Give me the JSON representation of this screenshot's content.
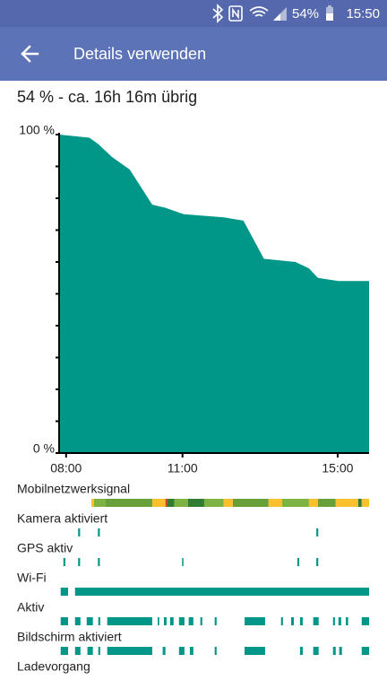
{
  "status_bar": {
    "battery": "54%",
    "time": "15:50"
  },
  "toolbar": {
    "title": "Details verwenden"
  },
  "summary": "54 % - ca. 16h 16m übrig",
  "chart_data": {
    "type": "area",
    "x": [
      7.82,
      8.6,
      8.83,
      9.18,
      9.64,
      10.22,
      10.56,
      11.03,
      12.06,
      12.57,
      13.1,
      13.91,
      14.26,
      14.49,
      15.02,
      15.81
    ],
    "values": [
      100,
      99,
      97,
      93,
      89,
      78,
      77,
      75,
      74,
      73,
      61,
      60,
      58,
      55,
      54,
      54
    ],
    "color": "#009688",
    "xlim": [
      7.82,
      15.81
    ],
    "ylim": [
      0,
      100
    ],
    "xticks": [
      {
        "value": 8,
        "label": "08:00"
      },
      {
        "value": 11,
        "label": "11:00"
      },
      {
        "value": 15,
        "label": "15:00"
      }
    ],
    "yticks": [
      {
        "value": 0,
        "label": "0 %"
      },
      {
        "value": 100,
        "label": "100 %"
      }
    ],
    "yminor_ticks": [
      10,
      20,
      30,
      40,
      50,
      60,
      70,
      80,
      90
    ]
  },
  "timeline": {
    "color": "#009688",
    "rows": [
      {
        "label": "Mobilnetzwerksignal",
        "segments": [
          {
            "start": 8.65,
            "end": 8.72,
            "color": "#fbc02d"
          },
          {
            "start": 8.72,
            "end": 9.02,
            "color": "#7cb342"
          },
          {
            "start": 9.02,
            "end": 10.22,
            "color": "#689f38"
          },
          {
            "start": 10.22,
            "end": 10.56,
            "color": "#fbc02d"
          },
          {
            "start": 10.56,
            "end": 10.6,
            "color": "#e53935"
          },
          {
            "start": 10.6,
            "end": 10.79,
            "color": "#2e7d32"
          },
          {
            "start": 10.79,
            "end": 11.14,
            "color": "#7cb342"
          },
          {
            "start": 11.14,
            "end": 11.56,
            "color": "#2e7d32"
          },
          {
            "start": 11.56,
            "end": 12.06,
            "color": "#7cb342"
          },
          {
            "start": 12.06,
            "end": 12.3,
            "color": "#fbc02d"
          },
          {
            "start": 12.3,
            "end": 13.22,
            "color": "#689f38"
          },
          {
            "start": 13.22,
            "end": 13.57,
            "color": "#fbc02d"
          },
          {
            "start": 13.57,
            "end": 14.26,
            "color": "#7cb342"
          },
          {
            "start": 14.26,
            "end": 14.49,
            "color": "#fbc02d"
          },
          {
            "start": 14.49,
            "end": 14.95,
            "color": "#689f38"
          },
          {
            "start": 14.95,
            "end": 15.53,
            "color": "#fbc02d"
          },
          {
            "start": 15.53,
            "end": 15.62,
            "color": "#2e7d32"
          },
          {
            "start": 15.62,
            "end": 15.81,
            "color": "#fbc02d"
          }
        ]
      },
      {
        "label": "Kamera aktiviert",
        "segments": [
          [
            8.31,
            8.36
          ],
          [
            8.82,
            8.87
          ],
          [
            14.45,
            14.5
          ]
        ]
      },
      {
        "label": "GPS aktiv",
        "segments": [
          [
            7.93,
            7.98
          ],
          [
            8.31,
            8.36
          ],
          [
            8.82,
            8.87
          ],
          [
            10.99,
            11.02
          ],
          [
            13.96,
            14.01
          ],
          [
            14.45,
            14.5
          ]
        ]
      },
      {
        "label": "Wi-Fi",
        "segments": [
          [
            7.86,
            8.05
          ],
          [
            8.23,
            15.81
          ]
        ]
      },
      {
        "label": "Aktiv",
        "segments": [
          [
            7.86,
            8.05
          ],
          [
            8.23,
            8.37
          ],
          [
            8.53,
            8.69
          ],
          [
            8.83,
            8.88
          ],
          [
            9.06,
            10.22
          ],
          [
            10.36,
            10.4
          ],
          [
            10.52,
            10.59
          ],
          [
            10.68,
            10.77
          ],
          [
            10.91,
            11.05
          ],
          [
            11.16,
            11.28
          ],
          [
            11.46,
            11.51
          ],
          [
            11.83,
            11.88
          ],
          [
            12.6,
            13.13
          ],
          [
            13.54,
            13.59
          ],
          [
            13.8,
            13.87
          ],
          [
            14.03,
            14.1
          ],
          [
            14.37,
            14.51
          ],
          [
            14.88,
            14.93
          ],
          [
            15.02,
            15.09
          ],
          [
            15.21,
            15.27
          ],
          [
            15.62,
            15.81
          ]
        ]
      },
      {
        "label": "Bildschirm aktiviert",
        "segments": [
          [
            7.86,
            8.05
          ],
          [
            8.23,
            8.37
          ],
          [
            8.55,
            8.69
          ],
          [
            8.83,
            8.88
          ],
          [
            9.06,
            10.22
          ],
          [
            10.49,
            10.56
          ],
          [
            10.91,
            11.05
          ],
          [
            11.19,
            11.28
          ],
          [
            11.83,
            11.88
          ],
          [
            12.6,
            13.13
          ],
          [
            14.03,
            14.1
          ],
          [
            14.37,
            14.51
          ],
          [
            14.88,
            14.95
          ],
          [
            15.04,
            15.11
          ],
          [
            15.62,
            15.81
          ]
        ]
      },
      {
        "label": "Ladevorgang",
        "segments": []
      }
    ]
  }
}
